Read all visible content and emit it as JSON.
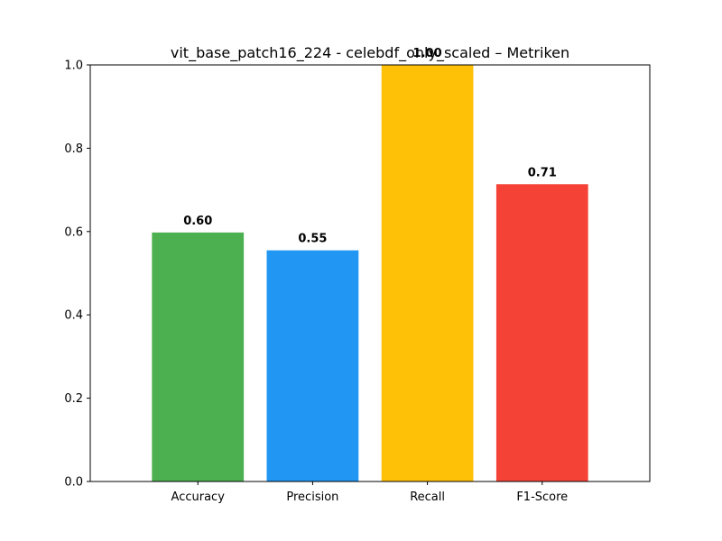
{
  "chart_data": {
    "type": "bar",
    "title": "vit_base_patch16_224 - celebdf_only_scaled – Metriken",
    "xlabel": "",
    "ylabel": "",
    "categories": [
      "Accuracy",
      "Precision",
      "Recall",
      "F1-Score"
    ],
    "values": [
      0.5977,
      0.5549,
      1.0,
      0.7137
    ],
    "value_labels": [
      "0.60",
      "0.55",
      "1.00",
      "0.71"
    ],
    "colors": [
      "#4caf50",
      "#2196f3",
      "#ffc107",
      "#f44336"
    ],
    "ylim": [
      0,
      1.0
    ],
    "yticks": [
      0.0,
      0.2,
      0.4,
      0.6,
      0.8,
      1.0
    ],
    "ytick_labels": [
      "0.0",
      "0.2",
      "0.4",
      "0.6",
      "0.8",
      "1.0"
    ],
    "grid": false,
    "legend": "none"
  }
}
